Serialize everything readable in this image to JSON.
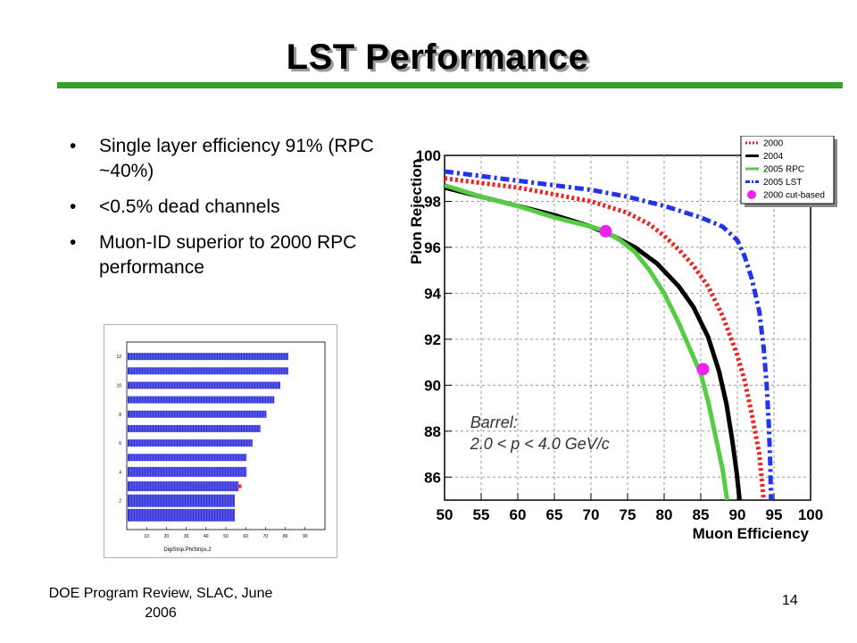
{
  "slide": {
    "title": "LST Performance",
    "bullets": [
      "Single layer efficiency 91% (RPC ~40%)",
      "<0.5% dead channels",
      "Muon-ID superior to 2000 RPC performance"
    ],
    "footer_left": "DOE Program Review, SLAC, June 2006",
    "page_number": "14",
    "accent_color": "#33a02c"
  },
  "chart_data": [
    {
      "type": "line",
      "xlabel": "Muon Efficiency",
      "ylabel": "Pion Rejection",
      "xlim": [
        50,
        100
      ],
      "ylim": [
        85,
        100
      ],
      "xticks": [
        50,
        55,
        60,
        65,
        70,
        75,
        80,
        85,
        90,
        95,
        100
      ],
      "yticks": [
        86,
        88,
        90,
        92,
        94,
        96,
        98,
        100
      ],
      "grid": true,
      "legend_position": "top-right",
      "annotation": [
        "Barrel:",
        "2.0 < p < 4.0 GeV/c"
      ],
      "series": [
        {
          "name": "2000",
          "color": "#ee2222",
          "style": "dotted",
          "points": [
            [
              50,
              99.0
            ],
            [
              55,
              98.8
            ],
            [
              60,
              98.6
            ],
            [
              65,
              98.3
            ],
            [
              70,
              98.0
            ],
            [
              75,
              97.5
            ],
            [
              78,
              97.0
            ],
            [
              80,
              96.5
            ],
            [
              82,
              95.9
            ],
            [
              84,
              95.2
            ],
            [
              86,
              94.3
            ],
            [
              88,
              93.0
            ],
            [
              90,
              91.3
            ],
            [
              91,
              90.2
            ],
            [
              92,
              88.7
            ],
            [
              93,
              87.0
            ],
            [
              93.6,
              85.0
            ]
          ]
        },
        {
          "name": "2004",
          "color": "#000000",
          "style": "solid",
          "points": [
            [
              50,
              98.6
            ],
            [
              55,
              98.2
            ],
            [
              60,
              97.8
            ],
            [
              65,
              97.4
            ],
            [
              70,
              96.9
            ],
            [
              73,
              96.5
            ],
            [
              76,
              96.0
            ],
            [
              79,
              95.3
            ],
            [
              82,
              94.3
            ],
            [
              84,
              93.4
            ],
            [
              86,
              92.1
            ],
            [
              87.5,
              90.6
            ],
            [
              88.5,
              89.2
            ],
            [
              89.3,
              87.6
            ],
            [
              89.9,
              86.2
            ],
            [
              90.3,
              85.0
            ]
          ]
        },
        {
          "name": "2005 RPC",
          "color": "#55cc44",
          "style": "solid",
          "points": [
            [
              50,
              98.7
            ],
            [
              55,
              98.2
            ],
            [
              60,
              97.8
            ],
            [
              65,
              97.3
            ],
            [
              70,
              96.9
            ],
            [
              72,
              96.7
            ],
            [
              74,
              96.3
            ],
            [
              76,
              95.8
            ],
            [
              78,
              95.0
            ],
            [
              80,
              94.0
            ],
            [
              82,
              92.7
            ],
            [
              83.5,
              91.6
            ],
            [
              85,
              90.5
            ],
            [
              86,
              89.3
            ],
            [
              87,
              87.8
            ],
            [
              88,
              86.3
            ],
            [
              88.6,
              85.0
            ]
          ]
        },
        {
          "name": "2005 LST",
          "color": "#2233ee",
          "style": "dashdot",
          "points": [
            [
              50,
              99.3
            ],
            [
              55,
              99.1
            ],
            [
              60,
              98.9
            ],
            [
              65,
              98.7
            ],
            [
              70,
              98.5
            ],
            [
              75,
              98.2
            ],
            [
              80,
              97.8
            ],
            [
              85,
              97.3
            ],
            [
              88,
              96.9
            ],
            [
              90,
              96.3
            ],
            [
              91,
              95.6
            ],
            [
              92,
              94.6
            ],
            [
              93,
              93.2
            ],
            [
              93.6,
              91.6
            ],
            [
              94,
              90.0
            ],
            [
              94.3,
              88.2
            ],
            [
              94.5,
              86.5
            ],
            [
              94.6,
              85.0
            ]
          ]
        },
        {
          "name": "2000 cut-based",
          "color": "#ee22ee",
          "style": "markers",
          "points": [
            [
              72,
              96.7
            ],
            [
              85.3,
              90.7
            ]
          ]
        }
      ]
    },
    {
      "type": "bar",
      "orientation": "horizontal",
      "xlabel": "DigiStrip.PhiStrips.2",
      "xlim": [
        0,
        100
      ],
      "ylim": [
        0,
        13
      ],
      "xticks": [
        10,
        20,
        30,
        40,
        50,
        60,
        70,
        80,
        90
      ],
      "yticks": [
        2,
        4,
        6,
        8,
        10,
        12
      ],
      "bar_color": "#3333dd",
      "categories": [
        1,
        2,
        3,
        4,
        5,
        6,
        7,
        8,
        9,
        10,
        11,
        12
      ],
      "values": [
        54,
        54,
        56,
        60,
        60,
        63,
        67,
        70,
        74,
        77,
        81,
        81
      ],
      "dead_channels": [
        {
          "row": 3,
          "value": 57
        }
      ]
    }
  ]
}
